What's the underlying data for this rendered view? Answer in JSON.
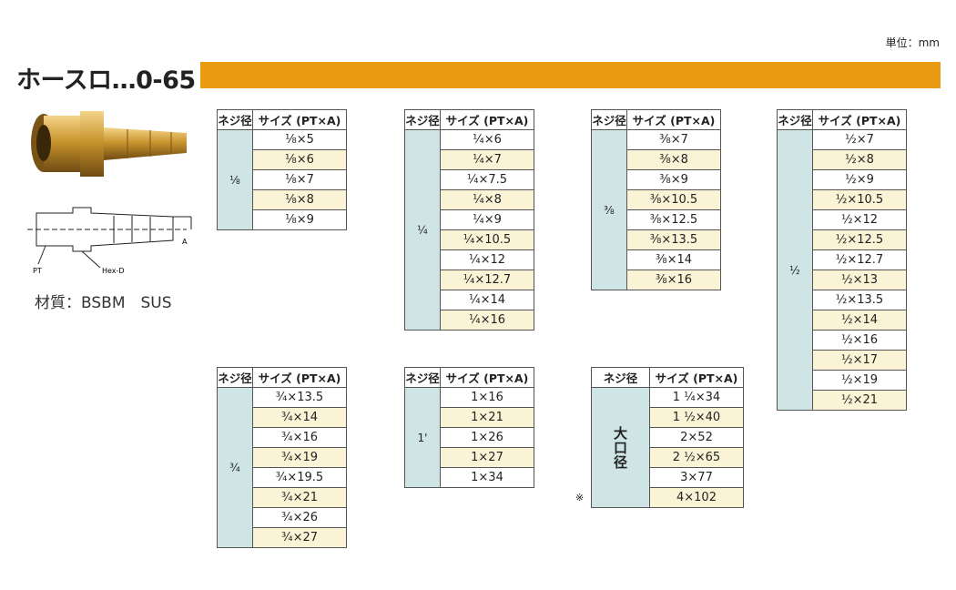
{
  "unit": "単位：mm",
  "title": "ホースロ…0-65",
  "material": "材質：BSBM　SUS",
  "diagram_labels": {
    "pt": "PT",
    "hex": "Hex-D",
    "a": "A"
  },
  "headers": [
    "ネジ径",
    "サイズ (PT×A)"
  ],
  "tables": [
    {
      "thread": "⅛",
      "sizes": [
        "⅛×5",
        "⅛×6",
        "⅛×7",
        "⅛×8",
        "⅛×9"
      ]
    },
    {
      "thread": "¼",
      "sizes": [
        "¼×6",
        "¼×7",
        "¼×7.5",
        "¼×8",
        "¼×9",
        "¼×10.5",
        "¼×12",
        "¼×12.7",
        "¼×14",
        "¼×16"
      ]
    },
    {
      "thread": "⅜",
      "sizes": [
        "⅜×7",
        "⅜×8",
        "⅜×9",
        "⅜×10.5",
        "⅜×12.5",
        "⅜×13.5",
        "⅜×14",
        "⅜×16"
      ]
    },
    {
      "thread": "½",
      "sizes": [
        "½×7",
        "½×8",
        "½×9",
        "½×10.5",
        "½×12",
        "½×12.5",
        "½×12.7",
        "½×13",
        "½×13.5",
        "½×14",
        "½×16",
        "½×17",
        "½×19",
        "½×21"
      ]
    },
    {
      "thread": "¾",
      "sizes": [
        "¾×13.5",
        "¾×14",
        "¾×16",
        "¾×19",
        "¾×19.5",
        "¾×21",
        "¾×26",
        "¾×27"
      ]
    },
    {
      "thread": "1'",
      "sizes": [
        "1×16",
        "1×21",
        "1×26",
        "1×27",
        "1×34"
      ]
    },
    {
      "thread": "大口径",
      "sizes": [
        "1 ¼×34",
        "1 ½×40",
        "2×52",
        "2 ½×65",
        "3×77",
        "4×102"
      ]
    }
  ],
  "note_mark": "※"
}
